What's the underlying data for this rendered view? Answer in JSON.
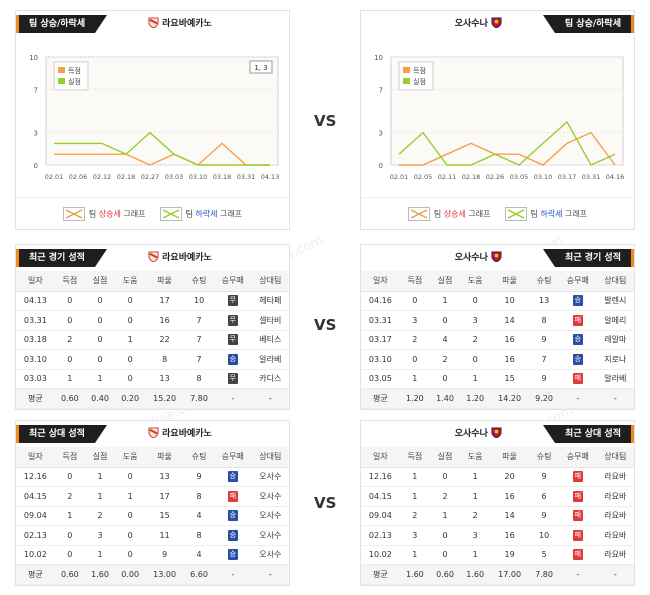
{
  "trend": {
    "title": "팀 상승/하락세",
    "home_team": "라요바예카노",
    "away_team": "오사수나",
    "legend_score": "득점",
    "legend_concede": "실점",
    "legend_up_pre": "팀 ",
    "legend_up_word": "상승세",
    "legend_down_pre": "팀 ",
    "legend_down_word": "하락세",
    "legend_suffix": " 그래프",
    "home_zoom": "1, 3",
    "colors": {
      "score": "#f5a04a",
      "concede": "#9acd32",
      "up": "#e53030",
      "down": "#2050c0",
      "accent": "#f08a1c"
    }
  },
  "vs_label": "VS",
  "recent": {
    "title": "최근 경기 성적",
    "headers": [
      "일자",
      "득점",
      "실점",
      "도움",
      "파울",
      "슈팅",
      "승무패",
      "상대팀"
    ]
  },
  "h2h": {
    "title": "최근 상대 성적"
  },
  "result_labels": {
    "W": "승",
    "D": "무",
    "L": "패"
  },
  "tables": {
    "home_recent": {
      "rows": [
        [
          "04.13",
          "0",
          "0",
          "0",
          "17",
          "10",
          "D",
          "헤타페"
        ],
        [
          "03.31",
          "0",
          "0",
          "0",
          "16",
          "7",
          "D",
          "셀타비"
        ],
        [
          "03.18",
          "2",
          "0",
          "1",
          "22",
          "7",
          "D",
          "베티스"
        ],
        [
          "03.10",
          "0",
          "0",
          "0",
          "8",
          "7",
          "W",
          "알라베"
        ],
        [
          "03.03",
          "1",
          "1",
          "0",
          "13",
          "8",
          "D",
          "카디스"
        ]
      ],
      "avg": [
        "평균",
        "0.60",
        "0.40",
        "0.20",
        "15.20",
        "7.80",
        "-",
        "-"
      ]
    },
    "away_recent": {
      "rows": [
        [
          "04.16",
          "0",
          "1",
          "0",
          "10",
          "13",
          "W",
          "발렌시"
        ],
        [
          "03.31",
          "3",
          "0",
          "3",
          "14",
          "8",
          "L",
          "알메리"
        ],
        [
          "03.17",
          "2",
          "4",
          "2",
          "16",
          "9",
          "W",
          "레알마"
        ],
        [
          "03.10",
          "0",
          "2",
          "0",
          "16",
          "7",
          "W",
          "지로나"
        ],
        [
          "03.05",
          "1",
          "0",
          "1",
          "15",
          "9",
          "L",
          "알라베"
        ]
      ],
      "avg": [
        "평균",
        "1.20",
        "1.40",
        "1.20",
        "14.20",
        "9.20",
        "-",
        "-"
      ]
    },
    "home_h2h": {
      "rows": [
        [
          "12.16",
          "0",
          "1",
          "0",
          "13",
          "9",
          "W",
          "오사수"
        ],
        [
          "04.15",
          "2",
          "1",
          "1",
          "17",
          "8",
          "L",
          "오사수"
        ],
        [
          "09.04",
          "1",
          "2",
          "0",
          "15",
          "4",
          "W",
          "오사수"
        ],
        [
          "02.13",
          "0",
          "3",
          "0",
          "11",
          "8",
          "W",
          "오사수"
        ],
        [
          "10.02",
          "0",
          "1",
          "0",
          "9",
          "4",
          "W",
          "오사수"
        ]
      ],
      "avg": [
        "평균",
        "0.60",
        "1.60",
        "0.00",
        "13.00",
        "6.60",
        "-",
        "-"
      ]
    },
    "away_h2h": {
      "rows": [
        [
          "12.16",
          "1",
          "0",
          "1",
          "20",
          "9",
          "L",
          "라요바"
        ],
        [
          "04.15",
          "1",
          "2",
          "1",
          "16",
          "6",
          "L",
          "라요바"
        ],
        [
          "09.04",
          "2",
          "1",
          "2",
          "14",
          "9",
          "L",
          "라요바"
        ],
        [
          "02.13",
          "3",
          "0",
          "3",
          "16",
          "10",
          "L",
          "라요바"
        ],
        [
          "10.02",
          "1",
          "0",
          "1",
          "19",
          "5",
          "L",
          "라요바"
        ]
      ],
      "avg": [
        "평균",
        "1.60",
        "0.60",
        "1.60",
        "17.00",
        "7.80",
        "-",
        "-"
      ]
    }
  },
  "chart_data": [
    {
      "type": "line",
      "team": "라요바예카노",
      "x": [
        "02.01",
        "02.06",
        "02.12",
        "02.18",
        "02.27",
        "03.03",
        "03.10",
        "03.18",
        "03.31",
        "04.13"
      ],
      "series": [
        {
          "name": "득점",
          "values": [
            1,
            1,
            1,
            1,
            0,
            1,
            0,
            2,
            0,
            0
          ]
        },
        {
          "name": "실점",
          "values": [
            2,
            2,
            2,
            1,
            3,
            1,
            0,
            0,
            0,
            0
          ]
        }
      ],
      "yticks": [
        0,
        3,
        7,
        10
      ],
      "ylim": [
        0,
        10
      ]
    },
    {
      "type": "line",
      "team": "오사수나",
      "x": [
        "02.01",
        "02.05",
        "02.11",
        "02.18",
        "02.26",
        "03.05",
        "03.10",
        "03.17",
        "03.31",
        "04.16"
      ],
      "series": [
        {
          "name": "득점",
          "values": [
            0,
            0,
            1,
            2,
            1,
            1,
            0,
            2,
            3,
            0
          ]
        },
        {
          "name": "실점",
          "values": [
            1,
            3,
            0,
            0,
            1,
            0,
            2,
            4,
            0,
            1
          ]
        }
      ],
      "yticks": [
        0,
        3,
        7,
        10
      ],
      "ylim": [
        0,
        10
      ]
    }
  ]
}
